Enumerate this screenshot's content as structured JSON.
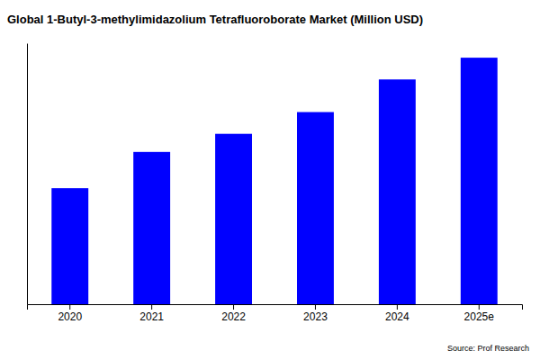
{
  "chart_data": {
    "type": "bar",
    "title": "Global 1-Butyl-3-methylimidazolium Tetrafluoroborate Market (Million USD)",
    "categories": [
      "2020",
      "2021",
      "2022",
      "2023",
      "2024",
      "2025e"
    ],
    "values": [
      32,
      42,
      47,
      53,
      62,
      68
    ],
    "color": "#0000ff",
    "ylim": [
      0,
      72
    ],
    "grid": false,
    "tick_labels": "x",
    "annotations": [
      "Source: Prof Research"
    ]
  }
}
